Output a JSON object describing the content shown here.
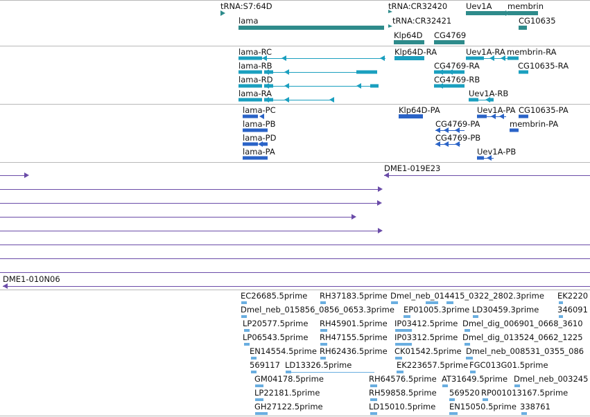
{
  "colors": {
    "gene": "#2e8b8b",
    "transcript_rna": "#1a9fbf",
    "transcript_prot": "#2a63c7",
    "clone": "#6a4ba8",
    "est": "#6aaee0",
    "separator": "#b8b8b8"
  },
  "tracks": {
    "genes": {
      "labels": [
        "tRNA:S7:64D",
        "tRNA:CR32420",
        "Uev1A",
        "membrin",
        "lama",
        "tRNA:CR32421",
        "CG10635",
        "Klp64D",
        "CG4769"
      ]
    },
    "transcripts": {
      "labels": [
        "lama-RC",
        "Klp64D-RA",
        "Uev1A-RA",
        "membrin-RA",
        "lama-RB",
        "CG4769-RA",
        "CG10635-RA",
        "lama-RD",
        "CG4769-RB",
        "lama-RA",
        "Uev1A-RB"
      ]
    },
    "proteins": {
      "labels": [
        "lama-PC",
        "Klp64D-PA",
        "Uev1A-PA",
        "CG10635-PA",
        "lama-PB",
        "CG4769-PA",
        "membrin-PA",
        "lama-PD",
        "CG4769-PB",
        "lama-PA",
        "Uev1A-PB"
      ]
    },
    "clones": {
      "labels": [
        "DME1-019E23",
        "DME1-010N06"
      ]
    },
    "ests": {
      "labels": [
        "EC26685.5prime",
        "RH37183.5prime",
        "Dmel_neb_014415_0322_2802.3prime",
        "EK2220",
        "Dmel_neb_015856_0856_0653.3prime",
        "EP01005.3prime",
        "LD30459.3prime",
        "346091",
        "LP20577.5prime",
        "RH45901.5prime",
        "IP03412.5prime",
        "Dmel_dig_006901_0668_3610",
        "LP06543.5prime",
        "RH47155.5prime",
        "IP03312.5prime",
        "Dmel_dig_013524_0662_1225",
        "EN14554.5prime",
        "RH62436.5prime",
        "CK01542.5prime",
        "Dmel_neb_008531_0355_086",
        "569117",
        "LD13326.5prime",
        "EK223657.5prime",
        "FGC013G01.5prime",
        "GM04178.5prime",
        "RH64576.5prime",
        "AT31649.5prime",
        "Dmel_neb_003245",
        "LP22181.5prime",
        "RH59858.5prime",
        "569520",
        "RP001013167.5prime",
        "GH27122.5prime",
        "LD15010.5prime",
        "EN15050.5prime",
        "338761"
      ]
    }
  }
}
